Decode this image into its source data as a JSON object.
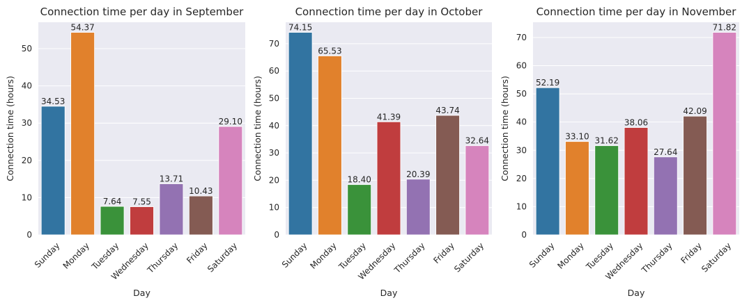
{
  "chart_data": [
    {
      "type": "bar",
      "title": "Connection time per day in September",
      "xlabel": "Day",
      "ylabel": "Connection time (hours)",
      "categories": [
        "Sunday",
        "Monday",
        "Tuesday",
        "Wednesday",
        "Thursday",
        "Friday",
        "Saturday"
      ],
      "values": [
        34.53,
        54.37,
        7.64,
        7.55,
        13.71,
        10.43,
        29.1
      ],
      "value_labels": [
        "34.53",
        "54.37",
        "7.64",
        "7.55",
        "13.71",
        "10.43",
        "29.10"
      ],
      "ylim": [
        0,
        57.1
      ],
      "yticks": [
        0,
        10,
        20,
        30,
        40,
        50
      ],
      "grid": true
    },
    {
      "type": "bar",
      "title": "Connection time per day in October",
      "xlabel": "Day",
      "ylabel": "Connection time (hours)",
      "categories": [
        "Sunday",
        "Monday",
        "Tuesday",
        "Wednesday",
        "Thursday",
        "Friday",
        "Saturday"
      ],
      "values": [
        74.15,
        65.53,
        18.4,
        41.39,
        20.39,
        43.74,
        32.64
      ],
      "value_labels": [
        "74.15",
        "65.53",
        "18.40",
        "41.39",
        "20.39",
        "43.74",
        "32.64"
      ],
      "ylim": [
        0,
        77.86
      ],
      "yticks": [
        0,
        10,
        20,
        30,
        40,
        50,
        60,
        70
      ],
      "grid": true
    },
    {
      "type": "bar",
      "title": "Connection time per day in November",
      "xlabel": "Day",
      "ylabel": "Connection time (hours)",
      "categories": [
        "Sunday",
        "Monday",
        "Tuesday",
        "Wednesday",
        "Thursday",
        "Friday",
        "Saturday"
      ],
      "values": [
        52.19,
        33.1,
        31.62,
        38.06,
        27.64,
        42.09,
        71.82
      ],
      "value_labels": [
        "52.19",
        "33.10",
        "31.62",
        "38.06",
        "27.64",
        "42.09",
        "71.82"
      ],
      "ylim": [
        0,
        75.41
      ],
      "yticks": [
        0,
        10,
        20,
        30,
        40,
        50,
        60,
        70
      ],
      "grid": true
    }
  ],
  "colors": {
    "bars": [
      "#3274a1",
      "#e1812c",
      "#3a923a",
      "#c03d3e",
      "#9372b2",
      "#845b53",
      "#d684bd"
    ],
    "plot_background": "#eaeaf2",
    "grid": "#ffffff",
    "text": "#262626"
  }
}
